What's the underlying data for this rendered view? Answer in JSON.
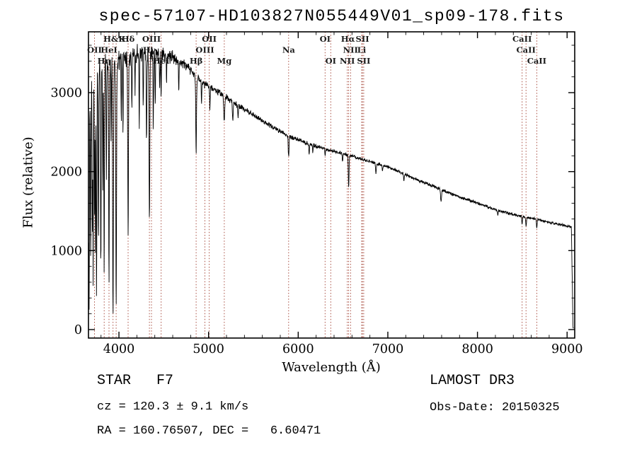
{
  "chart_data": {
    "type": "line",
    "title": "spec-57107-HD103827N055449V01_sp09-178.fits",
    "xlabel": "Wavelength (Å)",
    "ylabel": "Flux (relative)",
    "xlim": [
      3660,
      9085
    ],
    "ylim": [
      -107.5,
      3770
    ],
    "x_ticks": [
      4000,
      5000,
      6000,
      7000,
      8000,
      9000
    ],
    "y_ticks": [
      0,
      1000,
      2000,
      3000
    ],
    "x_minor_step": 200,
    "y_minor_step": 200,
    "grid": false,
    "legend": "none",
    "line_color": "#000000",
    "marker_color": "#a03c2e",
    "frame_color": "#000000",
    "noise_seed": 11,
    "sample_step": 2.5,
    "data_range": [
      3662,
      9075
    ],
    "cutoff": {
      "start": 9048,
      "ramp": 18
    },
    "flux_clamp": [
      20,
      3700
    ],
    "dotted_lines": [
      3727,
      3835,
      3889,
      3934,
      3969,
      4102,
      4340,
      4363,
      4471,
      4861,
      4959,
      5007,
      5175,
      5893,
      6300,
      6363,
      6548,
      6563,
      6584,
      6708,
      6717,
      6731,
      8498,
      8542,
      8662
    ],
    "line_labels": [
      {
        "text": "H&K",
        "wl": 3950,
        "row": 1
      },
      {
        "text": "Hδ",
        "wl": 4102,
        "row": 1
      },
      {
        "text": "OIII",
        "wl": 4363,
        "row": 1
      },
      {
        "text": "OII",
        "wl": 5007,
        "row": 1
      },
      {
        "text": "OI",
        "wl": 6300,
        "row": 1
      },
      {
        "text": "Hα",
        "wl": 6555,
        "row": 1
      },
      {
        "text": "SII",
        "wl": 6717,
        "row": 1
      },
      {
        "text": "CaII",
        "wl": 8498,
        "row": 1
      },
      {
        "text": "OII",
        "wl": 3727,
        "row": 2
      },
      {
        "text": "HeI",
        "wl": 3889,
        "row": 2
      },
      {
        "text": "Hγ",
        "wl": 4340,
        "row": 2
      },
      {
        "text": "OIII",
        "wl": 4959,
        "row": 2
      },
      {
        "text": "Na",
        "wl": 5893,
        "row": 2
      },
      {
        "text": "NII",
        "wl": 6584,
        "row": 2
      },
      {
        "text": "Li",
        "wl": 6708,
        "row": 2
      },
      {
        "text": "CaII",
        "wl": 8542,
        "row": 2
      },
      {
        "text": "Hη",
        "wl": 3835,
        "row": 3
      },
      {
        "text": "HeI",
        "wl": 4471,
        "row": 3
      },
      {
        "text": "Hβ",
        "wl": 4861,
        "row": 3
      },
      {
        "text": "Mg",
        "wl": 5175,
        "row": 3
      },
      {
        "text": "OI",
        "wl": 6363,
        "row": 3
      },
      {
        "text": "NII",
        "wl": 6548,
        "row": 3
      },
      {
        "text": "SII",
        "wl": 6731,
        "row": 3
      },
      {
        "text": "CaII",
        "wl": 8662,
        "row": 3
      }
    ],
    "continuum_points": [
      [
        3662,
        2920
      ],
      [
        3700,
        3150
      ],
      [
        3760,
        3250
      ],
      [
        3850,
        3330
      ],
      [
        3950,
        3380
      ],
      [
        4050,
        3450
      ],
      [
        4150,
        3500
      ],
      [
        4250,
        3520
      ],
      [
        4350,
        3505
      ],
      [
        4450,
        3490
      ],
      [
        4550,
        3465
      ],
      [
        4650,
        3420
      ],
      [
        4750,
        3340
      ],
      [
        4861,
        3200
      ],
      [
        4950,
        3110
      ],
      [
        5050,
        3050
      ],
      [
        5175,
        2960
      ],
      [
        5300,
        2860
      ],
      [
        5450,
        2750
      ],
      [
        5600,
        2645
      ],
      [
        5750,
        2540
      ],
      [
        5893,
        2450
      ],
      [
        6050,
        2380
      ],
      [
        6200,
        2320
      ],
      [
        6350,
        2270
      ],
      [
        6500,
        2230
      ],
      [
        6700,
        2160
      ],
      [
        6850,
        2110
      ],
      [
        7000,
        2060
      ],
      [
        7150,
        1990
      ],
      [
        7300,
        1910
      ],
      [
        7450,
        1840
      ],
      [
        7600,
        1770
      ],
      [
        7750,
        1700
      ],
      [
        7900,
        1640
      ],
      [
        8050,
        1580
      ],
      [
        8200,
        1520
      ],
      [
        8350,
        1470
      ],
      [
        8500,
        1430
      ],
      [
        8650,
        1400
      ],
      [
        8800,
        1360
      ],
      [
        8950,
        1320
      ],
      [
        9075,
        1290
      ]
    ],
    "absorption_lines": [
      [
        3666,
        2850,
        6
      ],
      [
        3685,
        2100,
        5
      ],
      [
        3703,
        2000,
        4
      ],
      [
        3712,
        2600,
        4
      ],
      [
        3727,
        1700,
        4
      ],
      [
        3737,
        2200,
        4
      ],
      [
        3750,
        2700,
        5
      ],
      [
        3771,
        2100,
        5
      ],
      [
        3798,
        2450,
        5
      ],
      [
        3820,
        1500,
        4
      ],
      [
        3835,
        2550,
        5
      ],
      [
        3860,
        1300,
        4
      ],
      [
        3889,
        2750,
        5
      ],
      [
        3912,
        1000,
        4
      ],
      [
        3934,
        3250,
        6
      ],
      [
        3969,
        3150,
        6
      ],
      [
        4026,
        800,
        4
      ],
      [
        4045,
        950,
        4
      ],
      [
        4102,
        2250,
        6
      ],
      [
        4144,
        750,
        4
      ],
      [
        4180,
        500,
        4
      ],
      [
        4227,
        950,
        4
      ],
      [
        4271,
        750,
        4
      ],
      [
        4308,
        1100,
        5
      ],
      [
        4340,
        2100,
        6
      ],
      [
        4383,
        950,
        4
      ],
      [
        4405,
        650,
        4
      ],
      [
        4455,
        450,
        4
      ],
      [
        4471,
        550,
        4
      ],
      [
        4531,
        400,
        4
      ],
      [
        4668,
        450,
        4
      ],
      [
        4861,
        980,
        6
      ],
      [
        4921,
        250,
        4
      ],
      [
        5015,
        250,
        4
      ],
      [
        5175,
        330,
        8
      ],
      [
        5270,
        240,
        6
      ],
      [
        5329,
        160,
        5
      ],
      [
        5893,
        270,
        6
      ],
      [
        6122,
        130,
        5
      ],
      [
        6163,
        100,
        4
      ],
      [
        6300,
        90,
        4
      ],
      [
        6495,
        100,
        5
      ],
      [
        6563,
        410,
        6
      ],
      [
        6867,
        130,
        6
      ],
      [
        6940,
        80,
        5
      ],
      [
        7180,
        80,
        6
      ],
      [
        7594,
        160,
        7
      ],
      [
        8227,
        70,
        5
      ],
      [
        8498,
        90,
        5
      ],
      [
        8542,
        115,
        6
      ],
      [
        8662,
        105,
        6
      ]
    ],
    "noise_sigma_points": [
      [
        3662,
        120
      ],
      [
        4000,
        105
      ],
      [
        4400,
        85
      ],
      [
        4700,
        50
      ],
      [
        5000,
        32
      ],
      [
        5500,
        25
      ],
      [
        6000,
        20
      ],
      [
        7000,
        16
      ],
      [
        8000,
        14
      ],
      [
        9075,
        12
      ]
    ]
  },
  "annotations": {
    "class_line": "STAR   F7",
    "survey": "LAMOST DR3",
    "cz_line": "cz = 120.3 ± 9.1 km/s",
    "obsdate_line": "Obs-Date: 20150325",
    "radec_line": "RA = 160.76507, DEC =   6.60471"
  }
}
